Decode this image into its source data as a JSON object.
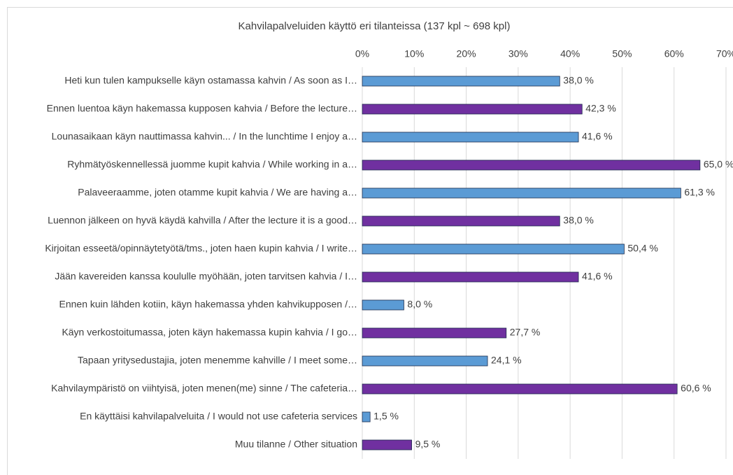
{
  "chart_data": {
    "type": "hbar",
    "title": "Kahvilapalveluiden käyttö eri tilanteissa (137 kpl ~ 698 kpl)",
    "categories": [
      "Heti kun tulen kampukselle käyn ostamassa kahvin / As soon as I…",
      "Ennen luentoa käyn hakemassa kupposen kahvia / Before the lecture…",
      "Lounasaikaan käyn nauttimassa kahvin... / In the lunchtime I enjoy a…",
      "Ryhmätyöskennellessä juomme kupit kahvia  / While working in a…",
      "Palaveeraamme, joten otamme kupit kahvia / We are having a…",
      "Luennon jälkeen on hyvä käydä kahvilla / After the lecture it is a good…",
      "Kirjoitan esseetä/opinnäytetyötä/tms., joten haen kupin kahvia / I write…",
      "Jään kavereiden kanssa koululle myöhään, joten tarvitsen kahvia / I…",
      "Ennen kuin lähden kotiin, käyn hakemassa yhden kahvikupposen /…",
      "Käyn verkostoitumassa, joten käyn hakemassa kupin kahvia / I go…",
      "Tapaan yritysedustajia, joten menemme kahville / I meet some…",
      "Kahvilaympäristö on viihtyisä, joten menen(me) sinne / The cafeteria…",
      "En käyttäisi kahvilapalveluita / I would not use cafeteria services",
      "Muu tilanne / Other situation"
    ],
    "values": [
      38.0,
      42.3,
      41.6,
      65.0,
      61.3,
      38.0,
      50.4,
      41.6,
      8.0,
      27.7,
      24.1,
      60.6,
      1.5,
      9.5
    ],
    "value_labels": [
      "38,0 %",
      "42,3 %",
      "41,6 %",
      "65,0 %",
      "61,3 %",
      "38,0 %",
      "50,4 %",
      "41,6 %",
      "8,0 %",
      "27,7 %",
      "24,1 %",
      "60,6 %",
      "1,5 %",
      "9,5 %"
    ],
    "colors": [
      "#5b9bd5",
      "#7030a0",
      "#5b9bd5",
      "#7030a0",
      "#5b9bd5",
      "#7030a0",
      "#5b9bd5",
      "#7030a0",
      "#5b9bd5",
      "#7030a0",
      "#5b9bd5",
      "#7030a0",
      "#5b9bd5",
      "#7030a0"
    ],
    "xlim": [
      0,
      70
    ],
    "xticks": [
      {
        "value": 0,
        "label": "0%"
      },
      {
        "value": 10,
        "label": "10%"
      },
      {
        "value": 20,
        "label": "20%"
      },
      {
        "value": 30,
        "label": "30%"
      },
      {
        "value": 40,
        "label": "40%"
      },
      {
        "value": 50,
        "label": "50%"
      },
      {
        "value": 60,
        "label": "60%"
      },
      {
        "value": 70,
        "label": "70%"
      }
    ],
    "grid": true
  }
}
